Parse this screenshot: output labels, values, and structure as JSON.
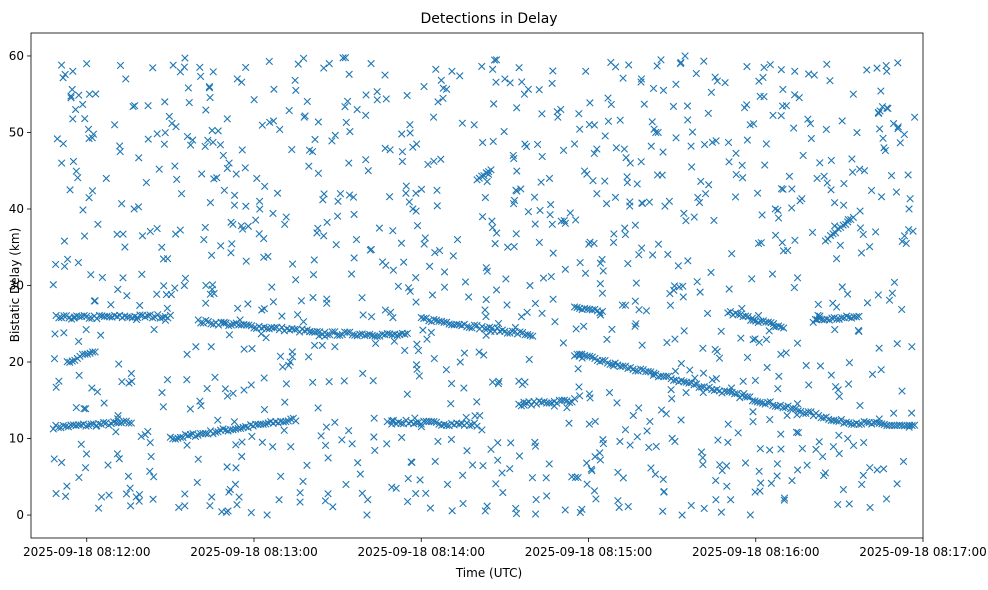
{
  "chart_data": {
    "type": "scatter",
    "title": "Detections in Delay",
    "xlabel": "Time (UTC)",
    "ylabel": "Bistatic Delay (km)",
    "marker": "x",
    "color": "#1f77b4",
    "x_unit": "seconds since 2025-09-18 08:12:00 UTC",
    "xlim": [
      -20,
      300
    ],
    "ylim": [
      -3,
      63
    ],
    "x_ticks": [
      {
        "value": 0,
        "label": "2025-09-18 08:12:00"
      },
      {
        "value": 60,
        "label": "2025-09-18 08:13:00"
      },
      {
        "value": 120,
        "label": "2025-09-18 08:14:00"
      },
      {
        "value": 180,
        "label": "2025-09-18 08:15:00"
      },
      {
        "value": 240,
        "label": "2025-09-18 08:16:00"
      },
      {
        "value": 300,
        "label": "2025-09-18 08:17:00"
      }
    ],
    "y_ticks": [
      {
        "value": 0,
        "label": "0"
      },
      {
        "value": 10,
        "label": "10"
      },
      {
        "value": 20,
        "label": "20"
      },
      {
        "value": 30,
        "label": "30"
      },
      {
        "value": 40,
        "label": "40"
      },
      {
        "value": 50,
        "label": "50"
      },
      {
        "value": 60,
        "label": "60"
      }
    ],
    "time_range": [
      -12,
      297
    ],
    "series": [
      {
        "name": "tracks",
        "segments": [
          {
            "t": [
              -12,
              16
            ],
            "delay": [
              11.5,
              12.1
            ]
          },
          {
            "t": [
              30,
              75
            ],
            "delay": [
              10.0,
              12.5
            ]
          },
          {
            "t": [
              110,
              140
            ],
            "delay": [
              12.2,
              11.8
            ]
          },
          {
            "t": [
              155,
              175
            ],
            "delay": [
              14.5,
              15.0
            ]
          },
          {
            "t": [
              175,
              268
            ],
            "delay": [
              21.0,
              12.5
            ]
          },
          {
            "t": [
              268,
              297
            ],
            "delay": [
              12.3,
              11.5
            ]
          },
          {
            "t": [
              -10,
              30
            ],
            "delay": [
              25.8,
              26.0
            ]
          },
          {
            "t": [
              40,
              80
            ],
            "delay": [
              25.3,
              24.0
            ]
          },
          {
            "t": [
              80,
              115
            ],
            "delay": [
              23.8,
              23.5
            ]
          },
          {
            "t": [
              120,
              160
            ],
            "delay": [
              25.7,
              23.5
            ]
          },
          {
            "t": [
              175,
              185
            ],
            "delay": [
              27.0,
              26.5
            ]
          },
          {
            "t": [
              230,
              250
            ],
            "delay": [
              26.5,
              24.5
            ]
          },
          {
            "t": [
              262,
              277
            ],
            "delay": [
              25.5,
              25.9
            ]
          },
          {
            "t": [
              -7,
              3
            ],
            "delay": [
              20.0,
              21.5
            ]
          },
          {
            "t": [
              265,
              275
            ],
            "delay": [
              36.0,
              39.0
            ]
          },
          {
            "t": [
              140,
              145
            ],
            "delay": [
              44.0,
              45.0
            ]
          }
        ]
      }
    ],
    "scatter_points": [
      [
        -12,
        30.1
      ],
      [
        -11,
        2.8
      ],
      [
        -9,
        46
      ],
      [
        -8,
        35.8
      ],
      [
        -6,
        42.5
      ],
      [
        -5,
        58
      ],
      [
        -3,
        33
      ],
      [
        -1,
        13.9
      ],
      [
        1,
        55
      ],
      [
        2,
        49.3
      ],
      [
        4,
        38
      ],
      [
        5,
        23.5
      ],
      [
        7,
        44
      ],
      [
        8,
        2.6
      ],
      [
        10,
        51
      ],
      [
        11,
        8
      ],
      [
        13,
        31
      ],
      [
        14,
        57
      ],
      [
        16,
        18.5
      ],
      [
        17,
        40
      ],
      [
        19,
        27.4
      ],
      [
        20,
        36.5
      ],
      [
        22,
        53.5
      ],
      [
        24,
        5
      ],
      [
        26,
        45.2
      ],
      [
        27,
        16
      ],
      [
        29,
        33.5
      ],
      [
        31,
        58.8
      ],
      [
        33,
        1
      ],
      [
        34,
        42
      ],
      [
        36,
        21
      ],
      [
        38,
        49
      ],
      [
        40,
        7.3
      ],
      [
        42,
        36
      ],
      [
        44,
        56
      ],
      [
        45,
        29.5
      ],
      [
        47,
        12.4
      ],
      [
        49,
        47
      ],
      [
        51,
        3
      ],
      [
        53,
        40.5
      ],
      [
        55,
        25.5
      ],
      [
        57,
        58.5
      ],
      [
        59,
        17
      ],
      [
        61,
        44
      ],
      [
        63,
        9.5
      ],
      [
        65,
        33.8
      ],
      [
        67,
        51.5
      ],
      [
        69,
        2
      ],
      [
        71,
        38
      ],
      [
        73,
        20
      ],
      [
        75,
        55.5
      ],
      [
        77,
        28
      ],
      [
        79,
        6.5
      ],
      [
        81,
        47.5
      ],
      [
        83,
        14
      ],
      [
        85,
        36.5
      ],
      [
        87,
        59
      ],
      [
        89,
        22
      ],
      [
        91,
        42
      ],
      [
        93,
        4
      ],
      [
        95,
        31.5
      ],
      [
        97,
        53
      ],
      [
        99,
        18.5
      ],
      [
        101,
        45
      ],
      [
        103,
        10.2
      ],
      [
        105,
        37.5
      ],
      [
        107,
        57.5
      ],
      [
        109,
        26.5
      ],
      [
        111,
        3.5
      ],
      [
        113,
        49.8
      ],
      [
        115,
        15.8
      ],
      [
        117,
        40
      ],
      [
        119,
        21.5
      ],
      [
        121,
        56
      ],
      [
        123,
        32.5
      ],
      [
        125,
        7
      ],
      [
        127,
        46.5
      ],
      [
        129,
        19
      ],
      [
        131,
        58
      ],
      [
        133,
        36
      ],
      [
        135,
        1.5
      ],
      [
        137,
        28.5
      ],
      [
        139,
        51
      ],
      [
        141,
        13
      ],
      [
        143,
        41.5
      ],
      [
        145,
        24
      ],
      [
        147,
        59.5
      ],
      [
        149,
        5.5
      ],
      [
        151,
        35
      ],
      [
        153,
        47
      ],
      [
        155,
        17.5
      ],
      [
        157,
        55
      ],
      [
        159,
        30
      ],
      [
        161,
        9
      ],
      [
        163,
        43.5
      ],
      [
        165,
        2.5
      ],
      [
        167,
        38
      ],
      [
        169,
        52
      ],
      [
        171,
        22.5
      ],
      [
        173,
        12
      ],
      [
        175,
        48.5
      ],
      [
        177,
        33
      ],
      [
        179,
        58
      ],
      [
        181,
        6
      ],
      [
        183,
        42
      ],
      [
        185,
        29
      ],
      [
        187,
        54.5
      ],
      [
        189,
        19.5
      ],
      [
        191,
        1
      ],
      [
        193,
        37.5
      ],
      [
        195,
        46
      ],
      [
        197,
        25
      ],
      [
        199,
        57
      ],
      [
        201,
        11
      ],
      [
        203,
        34
      ],
      [
        205,
        50
      ],
      [
        207,
        3
      ],
      [
        209,
        41
      ],
      [
        211,
        23
      ],
      [
        213,
        59
      ],
      [
        215,
        16
      ],
      [
        217,
        45.5
      ],
      [
        219,
        30.5
      ],
      [
        221,
        7.5
      ],
      [
        223,
        52.5
      ],
      [
        225,
        38.5
      ],
      [
        227,
        20.5
      ],
      [
        229,
        56.5
      ],
      [
        231,
        2
      ],
      [
        233,
        44.5
      ],
      [
        235,
        27
      ],
      [
        237,
        49
      ],
      [
        239,
        13.5
      ],
      [
        241,
        35.5
      ],
      [
        243,
        58.5
      ],
      [
        245,
        8.5
      ],
      [
        247,
        40
      ],
      [
        249,
        21
      ],
      [
        251,
        53.5
      ],
      [
        253,
        4.5
      ],
      [
        255,
        31
      ],
      [
        257,
        47
      ],
      [
        259,
        17
      ],
      [
        261,
        57.5
      ],
      [
        263,
        26
      ],
      [
        265,
        5.5
      ],
      [
        267,
        42.5
      ],
      [
        269,
        33.5
      ],
      [
        271,
        51.5
      ],
      [
        273,
        10
      ],
      [
        275,
        55
      ],
      [
        277,
        24
      ],
      [
        279,
        45
      ],
      [
        281,
        1
      ],
      [
        283,
        37
      ],
      [
        285,
        19
      ],
      [
        287,
        58
      ],
      [
        289,
        29
      ],
      [
        291,
        50.5
      ],
      [
        293,
        7
      ],
      [
        295,
        40
      ],
      [
        296,
        22
      ],
      [
        297,
        52
      ],
      [
        -10,
        17.5
      ],
      [
        -4,
        53
      ],
      [
        3,
        28
      ],
      [
        12,
        47.5
      ],
      [
        21,
        10.5
      ],
      [
        28,
        54
      ],
      [
        35,
        30
      ],
      [
        46,
        18
      ],
      [
        54,
        57
      ],
      [
        62,
        41
      ],
      [
        70,
        26
      ],
      [
        78,
        52
      ],
      [
        86,
        11.5
      ],
      [
        94,
        46
      ],
      [
        102,
        59
      ],
      [
        110,
        32
      ],
      [
        118,
        2.8
      ],
      [
        126,
        54
      ],
      [
        134,
        20
      ],
      [
        142,
        39
      ],
      [
        150,
        57
      ],
      [
        158,
        26.5
      ],
      [
        166,
        44
      ],
      [
        174,
        5
      ],
      [
        182,
        35.5
      ],
      [
        190,
        48
      ],
      [
        198,
        14
      ],
      [
        206,
        59.5
      ],
      [
        214,
        28.5
      ],
      [
        222,
        42
      ],
      [
        230,
        9.5
      ],
      [
        238,
        51
      ],
      [
        246,
        31.5
      ],
      [
        254,
        58
      ],
      [
        262,
        44
      ],
      [
        270,
        15.5
      ],
      [
        278,
        4
      ],
      [
        286,
        48
      ],
      [
        294,
        35.5
      ]
    ]
  }
}
